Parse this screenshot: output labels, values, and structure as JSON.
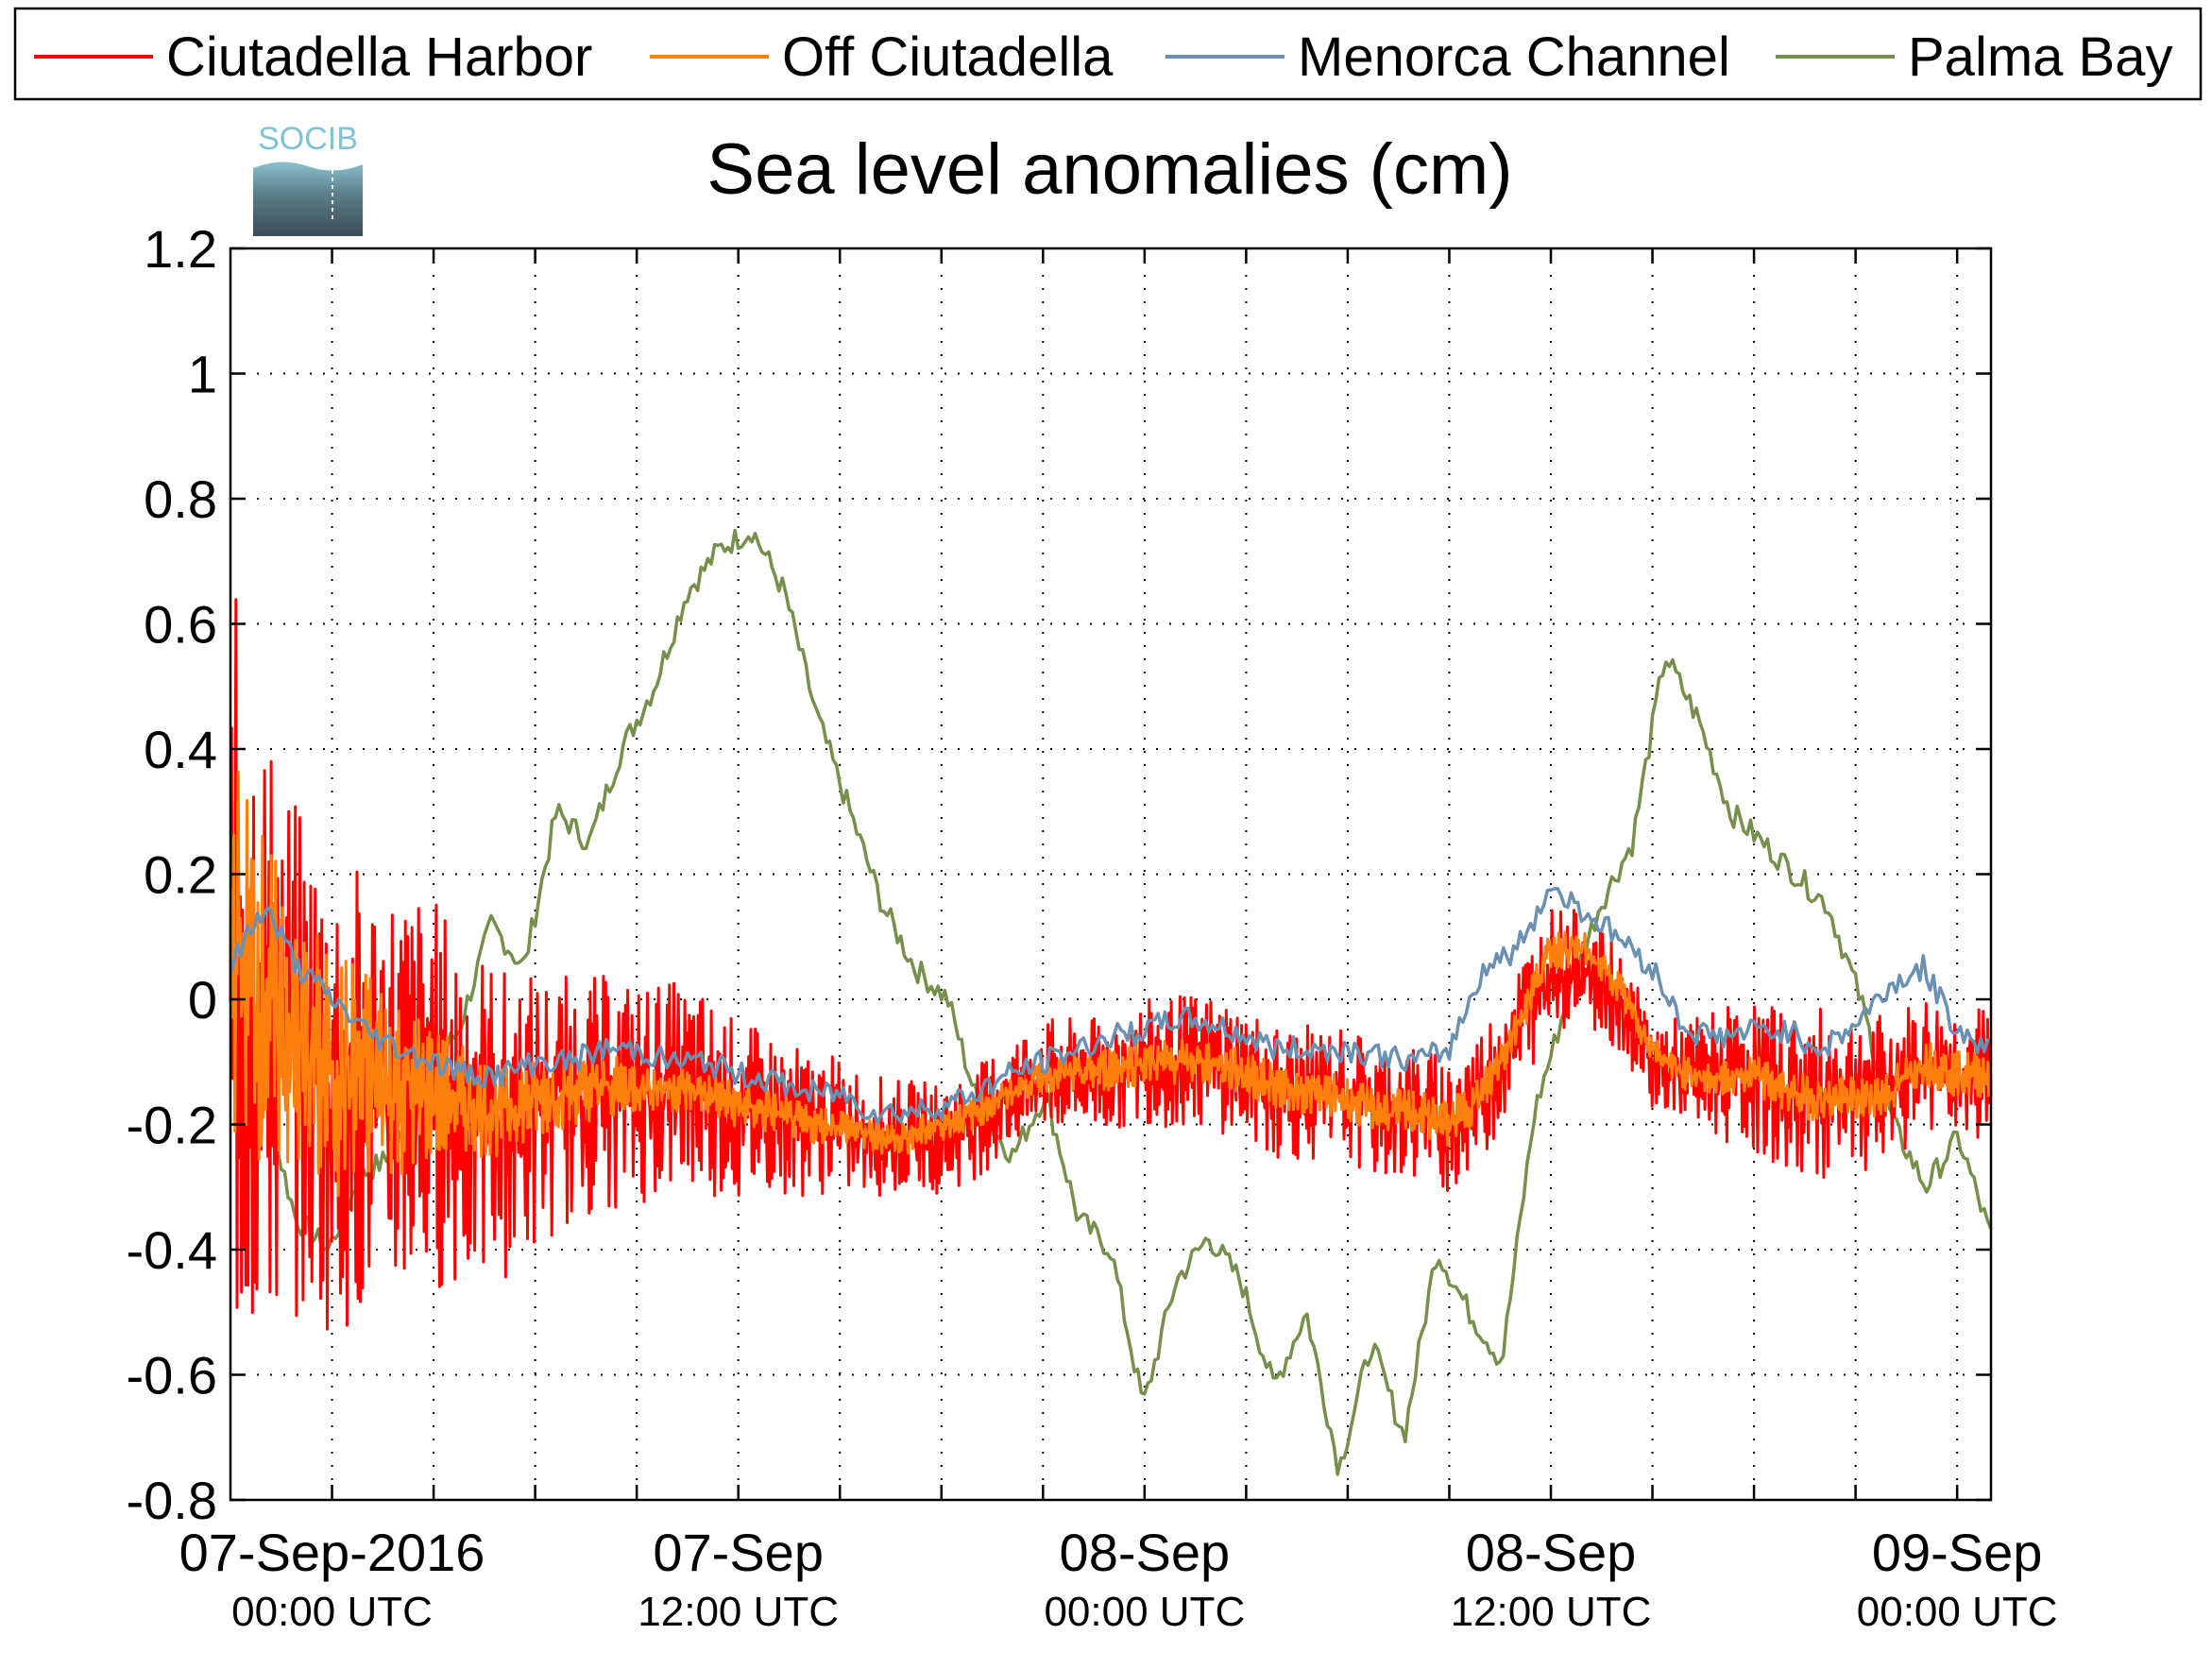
{
  "chart_data": {
    "type": "line",
    "title": "Sea level anomalies (cm)",
    "xlabel": "",
    "ylabel": "",
    "logo_text": "SOCIB",
    "ylim": [
      -0.8,
      1.2
    ],
    "xlim": [
      0,
      52
    ],
    "x_unit": "hours since 07-Sep-2016 00:00 UTC",
    "yticks": [
      {
        "value": 1.2,
        "label": "1.2"
      },
      {
        "value": 1.0,
        "label": "1"
      },
      {
        "value": 0.8,
        "label": "0.8"
      },
      {
        "value": 0.6,
        "label": "0.6"
      },
      {
        "value": 0.4,
        "label": "0.4"
      },
      {
        "value": 0.2,
        "label": "0.2"
      },
      {
        "value": 0.0,
        "label": "0"
      },
      {
        "value": -0.2,
        "label": "-0.2"
      },
      {
        "value": -0.4,
        "label": "-0.4"
      },
      {
        "value": -0.6,
        "label": "-0.6"
      },
      {
        "value": -0.8,
        "label": "-0.8"
      }
    ],
    "xgrid": [
      3,
      6,
      9,
      12,
      15,
      18,
      21,
      24,
      27,
      30,
      33,
      36,
      39,
      42,
      45,
      48,
      51
    ],
    "xticks": [
      {
        "x": 3,
        "date": "07-Sep-2016",
        "time": "00:00 UTC"
      },
      {
        "x": 15,
        "date": "07-Sep",
        "time": "12:00 UTC"
      },
      {
        "x": 27,
        "date": "08-Sep",
        "time": "00:00 UTC"
      },
      {
        "x": 39,
        "date": "08-Sep",
        "time": "12:00 UTC"
      },
      {
        "x": 51,
        "date": "09-Sep",
        "time": "00:00 UTC"
      }
    ],
    "grid": true,
    "legend_position": "top",
    "series": [
      {
        "name": "Ciutadella Harbor",
        "color": "#ff0000",
        "style": "noisy",
        "noise": [
          0.7,
          0.45,
          0.4,
          0.35,
          0.28,
          0.22,
          0.2,
          0.18,
          0.14,
          0.12,
          0.1,
          0.1,
          0.1,
          0.1,
          0.12,
          0.12,
          0.12,
          0.12,
          0.12,
          0.12,
          0.1,
          0.08,
          0.12,
          0.15,
          0.15,
          0.12,
          0.12
        ],
        "values": [
          0.05,
          -0.05,
          -0.1,
          -0.15,
          -0.15,
          -0.15,
          -0.15,
          -0.18,
          -0.2,
          -0.18,
          -0.16,
          -0.15,
          -0.15,
          -0.14,
          -0.15,
          -0.18,
          -0.18,
          -0.2,
          -0.2,
          -0.22,
          -0.22,
          -0.22,
          -0.2,
          -0.15,
          -0.12,
          -0.12,
          -0.12,
          -0.1,
          -0.1,
          -0.1,
          -0.12,
          -0.15,
          -0.15,
          -0.15,
          -0.18,
          -0.18,
          -0.2,
          -0.15,
          -0.05,
          0.05,
          0.05,
          0.0,
          -0.1,
          -0.12,
          -0.12,
          -0.12,
          -0.15,
          -0.15,
          -0.15,
          -0.15,
          -0.1,
          -0.12,
          -0.12
        ]
      },
      {
        "name": "Off Ciutadella",
        "color": "#ff7f0e",
        "style": "noisy",
        "noise": [
          0.35,
          0.25,
          0.2,
          0.12,
          0.08,
          0.06,
          0.05,
          0.04,
          0.04,
          0.03,
          0.03,
          0.03,
          0.03,
          0.04,
          0.04,
          0.04,
          0.04,
          0.04,
          0.04,
          0.04,
          0.03,
          0.03,
          0.03,
          0.04,
          0.04,
          0.04,
          0.04
        ],
        "values": [
          0.1,
          0.0,
          -0.08,
          -0.12,
          -0.12,
          -0.14,
          -0.15,
          -0.17,
          -0.18,
          -0.16,
          -0.15,
          -0.14,
          -0.14,
          -0.14,
          -0.15,
          -0.17,
          -0.18,
          -0.2,
          -0.2,
          -0.22,
          -0.22,
          -0.2,
          -0.18,
          -0.15,
          -0.12,
          -0.12,
          -0.11,
          -0.1,
          -0.1,
          -0.1,
          -0.12,
          -0.14,
          -0.15,
          -0.16,
          -0.18,
          -0.18,
          -0.2,
          -0.15,
          -0.04,
          0.08,
          0.08,
          0.02,
          -0.08,
          -0.12,
          -0.13,
          -0.12,
          -0.15,
          -0.16,
          -0.16,
          -0.15,
          -0.1,
          -0.12,
          -0.12
        ]
      },
      {
        "name": "Menorca Channel",
        "color": "#6a91b3",
        "style": "smooth",
        "values": [
          0.05,
          0.15,
          0.05,
          0.0,
          -0.05,
          -0.08,
          -0.1,
          -0.12,
          -0.12,
          -0.1,
          -0.1,
          -0.08,
          -0.08,
          -0.1,
          -0.1,
          -0.12,
          -0.13,
          -0.15,
          -0.15,
          -0.18,
          -0.18,
          -0.17,
          -0.15,
          -0.12,
          -0.1,
          -0.08,
          -0.06,
          -0.05,
          -0.03,
          -0.04,
          -0.06,
          -0.08,
          -0.08,
          -0.08,
          -0.09,
          -0.1,
          -0.08,
          0.05,
          0.08,
          0.18,
          0.14,
          0.1,
          0.05,
          -0.05,
          -0.06,
          -0.05,
          -0.05,
          -0.08,
          -0.04,
          0.02,
          0.05,
          -0.05,
          -0.08
        ]
      },
      {
        "name": "Palma Bay",
        "color": "#76904b",
        "style": "smooth",
        "values": [
          0.0,
          -0.15,
          -0.35,
          -0.4,
          -0.28,
          -0.25,
          -0.12,
          -0.05,
          0.12,
          0.05,
          0.3,
          0.25,
          0.4,
          0.5,
          0.65,
          0.72,
          0.75,
          0.65,
          0.45,
          0.3,
          0.15,
          0.05,
          0.0,
          -0.18,
          -0.25,
          -0.15,
          -0.35,
          -0.4,
          -0.65,
          -0.45,
          -0.38,
          -0.45,
          -0.62,
          -0.5,
          -0.75,
          -0.55,
          -0.7,
          -0.4,
          -0.5,
          -0.58,
          -0.18,
          0.0,
          0.15,
          0.25,
          0.55,
          0.45,
          0.3,
          0.25,
          0.2,
          0.15,
          0.0,
          -0.2,
          -0.3,
          -0.22,
          -0.38
        ]
      }
    ]
  }
}
